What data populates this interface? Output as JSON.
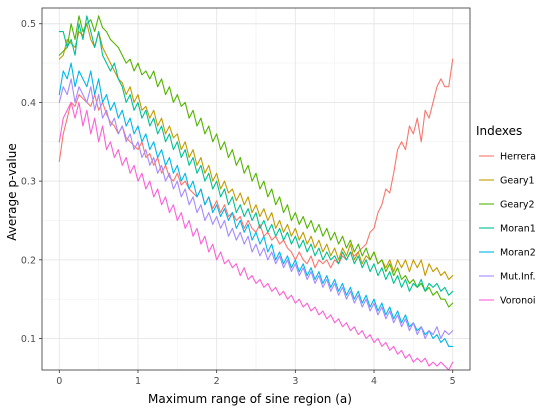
{
  "chart_data": {
    "type": "line",
    "title": "",
    "xlabel": "Maximum range of sine region (a)",
    "ylabel": "Average p-value",
    "xlim": [
      -0.22,
      5.22
    ],
    "ylim": [
      0.06,
      0.52
    ],
    "x_ticks": [
      0,
      1,
      2,
      3,
      4,
      5
    ],
    "y_ticks": [
      0.1,
      0.2,
      0.3,
      0.4,
      0.5
    ],
    "grid": true,
    "legend_title": "Indexes",
    "legend_position": "right",
    "x_start": 0,
    "x_step": 0.05,
    "series": [
      {
        "name": "Herrera",
        "color": "#F8766D",
        "values": [
          0.325,
          0.36,
          0.38,
          0.4,
          0.395,
          0.41,
          0.405,
          0.4,
          0.395,
          0.41,
          0.39,
          0.4,
          0.385,
          0.375,
          0.37,
          0.36,
          0.37,
          0.355,
          0.35,
          0.345,
          0.34,
          0.35,
          0.33,
          0.335,
          0.32,
          0.33,
          0.31,
          0.32,
          0.305,
          0.3,
          0.31,
          0.295,
          0.3,
          0.29,
          0.285,
          0.28,
          0.29,
          0.27,
          0.28,
          0.265,
          0.275,
          0.26,
          0.27,
          0.255,
          0.26,
          0.25,
          0.255,
          0.24,
          0.25,
          0.24,
          0.235,
          0.245,
          0.23,
          0.235,
          0.225,
          0.23,
          0.22,
          0.225,
          0.215,
          0.21,
          0.2,
          0.21,
          0.2,
          0.195,
          0.205,
          0.19,
          0.2,
          0.195,
          0.2,
          0.19,
          0.2,
          0.195,
          0.205,
          0.2,
          0.21,
          0.205,
          0.21,
          0.215,
          0.22,
          0.235,
          0.24,
          0.26,
          0.27,
          0.29,
          0.285,
          0.31,
          0.34,
          0.35,
          0.34,
          0.37,
          0.36,
          0.38,
          0.35,
          0.39,
          0.38,
          0.4,
          0.42,
          0.43,
          0.42,
          0.42,
          0.455
        ]
      },
      {
        "name": "Geary1",
        "color": "#C49A00",
        "values": [
          0.455,
          0.46,
          0.48,
          0.475,
          0.47,
          0.49,
          0.485,
          0.5,
          0.48,
          0.47,
          0.49,
          0.47,
          0.46,
          0.45,
          0.44,
          0.43,
          0.425,
          0.41,
          0.42,
          0.4,
          0.41,
          0.39,
          0.395,
          0.38,
          0.39,
          0.37,
          0.38,
          0.36,
          0.37,
          0.355,
          0.36,
          0.34,
          0.35,
          0.33,
          0.34,
          0.32,
          0.33,
          0.31,
          0.32,
          0.3,
          0.31,
          0.29,
          0.3,
          0.285,
          0.29,
          0.275,
          0.285,
          0.27,
          0.28,
          0.26,
          0.27,
          0.255,
          0.265,
          0.25,
          0.26,
          0.24,
          0.25,
          0.235,
          0.245,
          0.23,
          0.24,
          0.225,
          0.235,
          0.22,
          0.23,
          0.215,
          0.225,
          0.21,
          0.22,
          0.205,
          0.215,
          0.2,
          0.215,
          0.205,
          0.22,
          0.2,
          0.21,
          0.195,
          0.205,
          0.2,
          0.21,
          0.195,
          0.2,
          0.19,
          0.2,
          0.185,
          0.2,
          0.19,
          0.2,
          0.185,
          0.2,
          0.19,
          0.2,
          0.18,
          0.195,
          0.185,
          0.19,
          0.18,
          0.185,
          0.175,
          0.18
        ]
      },
      {
        "name": "Geary2",
        "color": "#53B400",
        "values": [
          0.46,
          0.465,
          0.47,
          0.5,
          0.48,
          0.51,
          0.49,
          0.5,
          0.505,
          0.49,
          0.51,
          0.495,
          0.49,
          0.48,
          0.475,
          0.47,
          0.46,
          0.45,
          0.455,
          0.44,
          0.45,
          0.435,
          0.44,
          0.43,
          0.44,
          0.42,
          0.43,
          0.41,
          0.42,
          0.4,
          0.41,
          0.395,
          0.4,
          0.38,
          0.39,
          0.37,
          0.38,
          0.36,
          0.37,
          0.35,
          0.36,
          0.34,
          0.35,
          0.33,
          0.34,
          0.32,
          0.33,
          0.31,
          0.32,
          0.3,
          0.31,
          0.29,
          0.3,
          0.28,
          0.29,
          0.27,
          0.28,
          0.26,
          0.27,
          0.25,
          0.26,
          0.245,
          0.255,
          0.24,
          0.25,
          0.235,
          0.245,
          0.23,
          0.24,
          0.225,
          0.235,
          0.22,
          0.23,
          0.215,
          0.225,
          0.21,
          0.22,
          0.205,
          0.215,
          0.2,
          0.21,
          0.195,
          0.2,
          0.185,
          0.195,
          0.18,
          0.19,
          0.175,
          0.18,
          0.17,
          0.175,
          0.165,
          0.17,
          0.16,
          0.165,
          0.155,
          0.16,
          0.15,
          0.15,
          0.14,
          0.145
        ]
      },
      {
        "name": "Moran1",
        "color": "#00C094",
        "values": [
          0.49,
          0.49,
          0.47,
          0.48,
          0.46,
          0.5,
          0.48,
          0.51,
          0.49,
          0.47,
          0.49,
          0.46,
          0.45,
          0.44,
          0.45,
          0.43,
          0.42,
          0.4,
          0.41,
          0.39,
          0.4,
          0.38,
          0.39,
          0.37,
          0.38,
          0.36,
          0.37,
          0.35,
          0.36,
          0.34,
          0.35,
          0.33,
          0.34,
          0.32,
          0.33,
          0.31,
          0.32,
          0.3,
          0.31,
          0.29,
          0.3,
          0.28,
          0.29,
          0.27,
          0.28,
          0.26,
          0.27,
          0.255,
          0.265,
          0.25,
          0.26,
          0.24,
          0.25,
          0.235,
          0.245,
          0.23,
          0.24,
          0.225,
          0.235,
          0.22,
          0.23,
          0.215,
          0.225,
          0.21,
          0.22,
          0.205,
          0.215,
          0.2,
          0.21,
          0.2,
          0.205,
          0.195,
          0.21,
          0.2,
          0.21,
          0.195,
          0.205,
          0.19,
          0.2,
          0.185,
          0.195,
          0.18,
          0.19,
          0.175,
          0.185,
          0.17,
          0.18,
          0.165,
          0.175,
          0.16,
          0.17,
          0.165,
          0.175,
          0.16,
          0.17,
          0.165,
          0.17,
          0.16,
          0.165,
          0.155,
          0.16
        ]
      },
      {
        "name": "Moran2",
        "color": "#00B6EB",
        "values": [
          0.41,
          0.44,
          0.43,
          0.45,
          0.42,
          0.44,
          0.43,
          0.42,
          0.44,
          0.41,
          0.43,
          0.4,
          0.41,
          0.39,
          0.4,
          0.38,
          0.39,
          0.37,
          0.38,
          0.36,
          0.37,
          0.35,
          0.36,
          0.34,
          0.35,
          0.33,
          0.34,
          0.32,
          0.33,
          0.31,
          0.32,
          0.3,
          0.31,
          0.29,
          0.3,
          0.28,
          0.29,
          0.27,
          0.28,
          0.26,
          0.27,
          0.255,
          0.265,
          0.25,
          0.26,
          0.24,
          0.25,
          0.235,
          0.245,
          0.225,
          0.235,
          0.22,
          0.23,
          0.21,
          0.22,
          0.2,
          0.21,
          0.195,
          0.205,
          0.19,
          0.2,
          0.185,
          0.195,
          0.18,
          0.19,
          0.175,
          0.185,
          0.17,
          0.18,
          0.165,
          0.175,
          0.16,
          0.17,
          0.155,
          0.165,
          0.15,
          0.16,
          0.145,
          0.155,
          0.14,
          0.15,
          0.135,
          0.145,
          0.13,
          0.14,
          0.125,
          0.135,
          0.12,
          0.13,
          0.115,
          0.12,
          0.11,
          0.115,
          0.105,
          0.11,
          0.1,
          0.105,
          0.095,
          0.1,
          0.09,
          0.09
        ]
      },
      {
        "name": "Mut.Inf.",
        "color": "#A58AFF",
        "values": [
          0.4,
          0.42,
          0.41,
          0.43,
          0.4,
          0.42,
          0.41,
          0.4,
          0.42,
          0.39,
          0.41,
          0.38,
          0.39,
          0.37,
          0.38,
          0.36,
          0.37,
          0.35,
          0.36,
          0.34,
          0.35,
          0.33,
          0.34,
          0.32,
          0.33,
          0.31,
          0.32,
          0.3,
          0.31,
          0.29,
          0.3,
          0.28,
          0.29,
          0.27,
          0.28,
          0.26,
          0.27,
          0.25,
          0.26,
          0.245,
          0.255,
          0.24,
          0.25,
          0.23,
          0.24,
          0.225,
          0.235,
          0.22,
          0.23,
          0.21,
          0.22,
          0.205,
          0.215,
          0.2,
          0.21,
          0.195,
          0.205,
          0.19,
          0.2,
          0.185,
          0.195,
          0.18,
          0.19,
          0.175,
          0.185,
          0.17,
          0.18,
          0.165,
          0.175,
          0.16,
          0.17,
          0.155,
          0.165,
          0.15,
          0.16,
          0.145,
          0.155,
          0.14,
          0.15,
          0.135,
          0.145,
          0.13,
          0.14,
          0.125,
          0.135,
          0.12,
          0.13,
          0.115,
          0.125,
          0.11,
          0.12,
          0.105,
          0.115,
          0.1,
          0.11,
          0.105,
          0.115,
          0.1,
          0.11,
          0.105,
          0.11
        ]
      },
      {
        "name": "Voronoi",
        "color": "#FB61D7",
        "values": [
          0.35,
          0.38,
          0.39,
          0.4,
          0.38,
          0.4,
          0.37,
          0.39,
          0.36,
          0.38,
          0.35,
          0.37,
          0.34,
          0.35,
          0.33,
          0.34,
          0.32,
          0.33,
          0.31,
          0.32,
          0.3,
          0.31,
          0.29,
          0.3,
          0.28,
          0.29,
          0.27,
          0.28,
          0.26,
          0.27,
          0.25,
          0.26,
          0.24,
          0.25,
          0.23,
          0.24,
          0.22,
          0.23,
          0.21,
          0.22,
          0.2,
          0.21,
          0.195,
          0.2,
          0.19,
          0.195,
          0.18,
          0.19,
          0.175,
          0.18,
          0.17,
          0.175,
          0.165,
          0.17,
          0.16,
          0.165,
          0.155,
          0.16,
          0.15,
          0.155,
          0.145,
          0.15,
          0.14,
          0.145,
          0.135,
          0.14,
          0.13,
          0.135,
          0.125,
          0.13,
          0.12,
          0.125,
          0.115,
          0.12,
          0.11,
          0.115,
          0.105,
          0.11,
          0.1,
          0.105,
          0.095,
          0.1,
          0.09,
          0.095,
          0.085,
          0.09,
          0.08,
          0.085,
          0.075,
          0.08,
          0.07,
          0.075,
          0.07,
          0.075,
          0.065,
          0.07,
          0.065,
          0.07,
          0.065,
          0.06,
          0.07
        ]
      }
    ]
  }
}
